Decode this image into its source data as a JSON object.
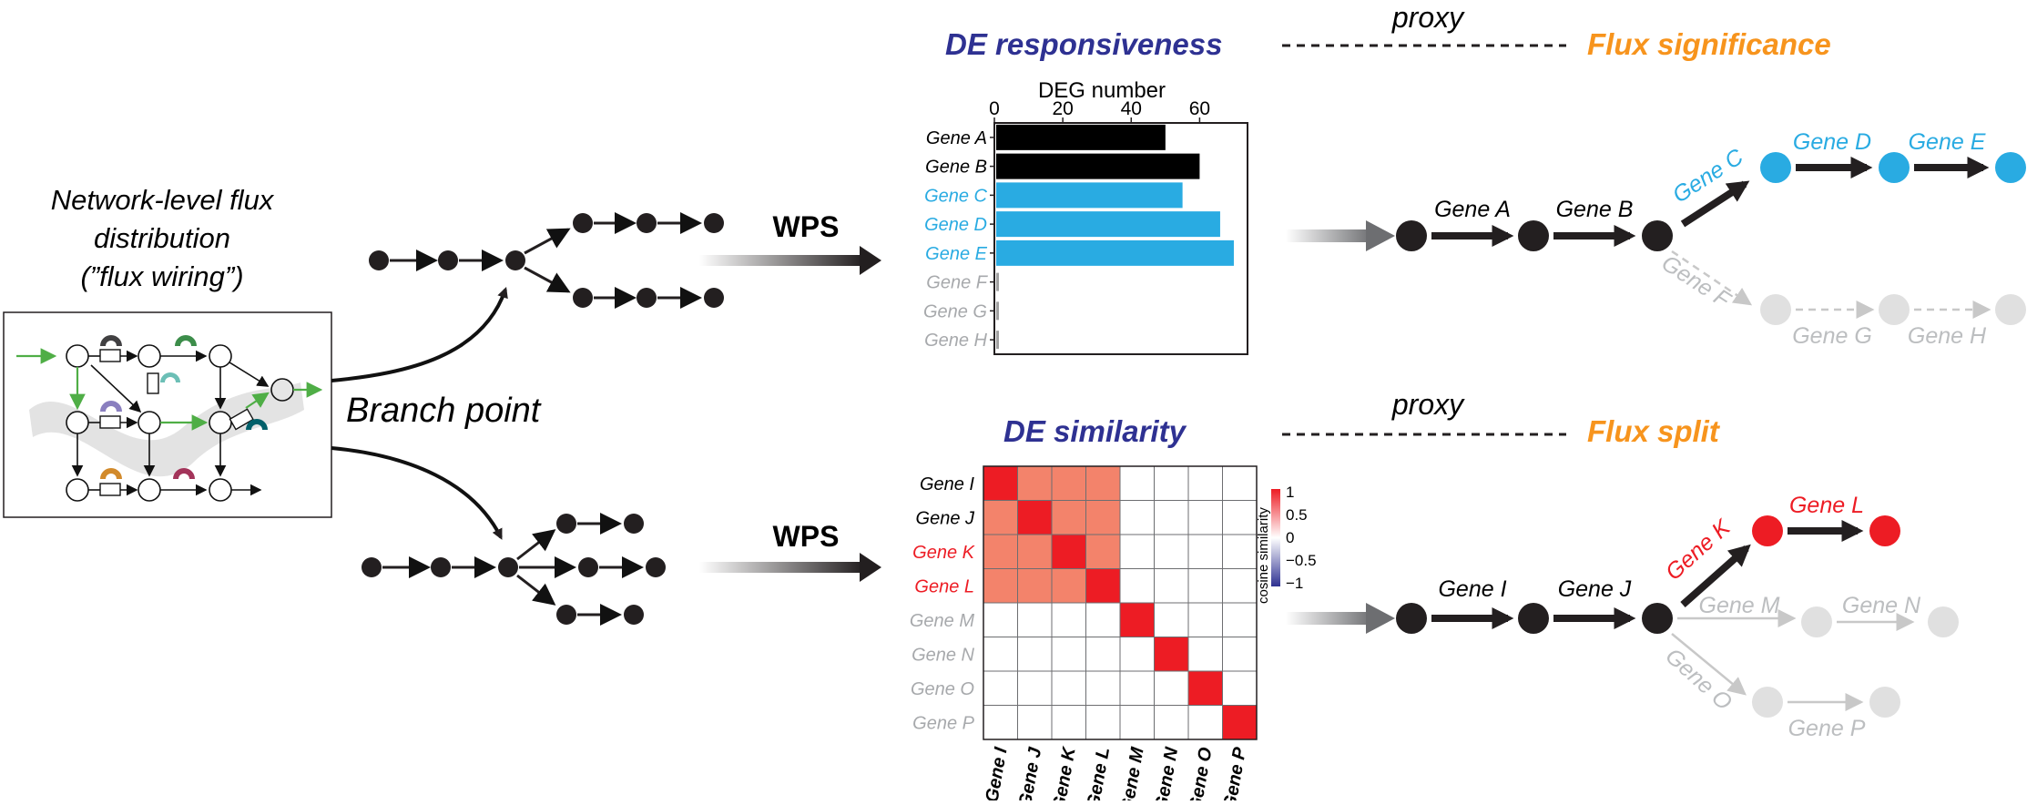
{
  "left_panel": {
    "caption_lines": [
      "Network-level flux",
      "distribution",
      "(”flux wiring”)"
    ],
    "branch_label": "Branch point"
  },
  "arrows": {
    "top_label": "WPS",
    "bottom_label": "WPS"
  },
  "top": {
    "title_left": "DE responsiveness",
    "proxy": "proxy",
    "title_right": "Flux significance",
    "colors": {
      "title_left": "#2e3192",
      "title_right": "#f7941d",
      "active": "#29abe2",
      "inactive": "#bcbec0",
      "black": "#000000"
    },
    "pathway_labels": [
      "Gene A",
      "Gene B",
      "Gene C",
      "Gene D",
      "Gene E",
      "Gene F",
      "Gene G",
      "Gene H"
    ]
  },
  "bottom": {
    "title_left": "DE similarity",
    "proxy": "proxy",
    "title_right": "Flux split",
    "colors": {
      "highlight": "#ed1c24",
      "inactive": "#bcbec0"
    },
    "pathway_labels": [
      "Gene I",
      "Gene J",
      "Gene K",
      "Gene L",
      "Gene M",
      "Gene N",
      "Gene O",
      "Gene P"
    ],
    "legend": {
      "title": "cosine similarity",
      "ticks": [
        "1",
        "0.5",
        "0",
        "−0.5",
        "−1"
      ]
    }
  },
  "chart_data": [
    {
      "type": "bar",
      "orientation": "horizontal",
      "xlabel": "DEG number",
      "xticks": [
        "0",
        "20",
        "40",
        "60"
      ],
      "xlim": [
        0,
        74
      ],
      "categories": [
        "Gene A",
        "Gene B",
        "Gene C",
        "Gene D",
        "Gene E",
        "Gene F",
        "Gene G",
        "Gene H"
      ],
      "values": [
        50,
        60,
        55,
        66,
        70,
        1,
        1,
        1
      ],
      "colors": [
        "#000000",
        "#000000",
        "#29abe2",
        "#29abe2",
        "#29abe2",
        "#a0a0a0",
        "#a0a0a0",
        "#a0a0a0"
      ]
    },
    {
      "type": "heatmap",
      "legend_title": "cosine similarity",
      "rows": [
        "Gene I",
        "Gene J",
        "Gene K",
        "Gene L",
        "Gene M",
        "Gene N",
        "Gene O",
        "Gene P"
      ],
      "columns": [
        "Gene I",
        "Gene J",
        "Gene K",
        "Gene L",
        "Gene M",
        "Gene N",
        "Gene O",
        "Gene P"
      ],
      "row_colors": [
        "#000000",
        "#000000",
        "#ed1c24",
        "#ed1c24",
        "#939598",
        "#939598",
        "#939598",
        "#939598"
      ],
      "values": [
        [
          1,
          0.8,
          0.8,
          0.8,
          0,
          0,
          0,
          0
        ],
        [
          0.8,
          1,
          0.8,
          0.8,
          0,
          0,
          0,
          0
        ],
        [
          0.8,
          0.8,
          1,
          0.8,
          0,
          0,
          0,
          0
        ],
        [
          0.8,
          0.8,
          0.8,
          1,
          0,
          0,
          0,
          0
        ],
        [
          0,
          0,
          0,
          0,
          1,
          0,
          0,
          0
        ],
        [
          0,
          0,
          0,
          0,
          0,
          1,
          0,
          0
        ],
        [
          0,
          0,
          0,
          0,
          0,
          0,
          1,
          0
        ],
        [
          0,
          0,
          0,
          0,
          0,
          0,
          0,
          1
        ]
      ],
      "color_scale": {
        "min": -1,
        "max": 1,
        "low": "#2e3192",
        "mid": "#ffffff",
        "high": "#ed1c24"
      }
    }
  ]
}
